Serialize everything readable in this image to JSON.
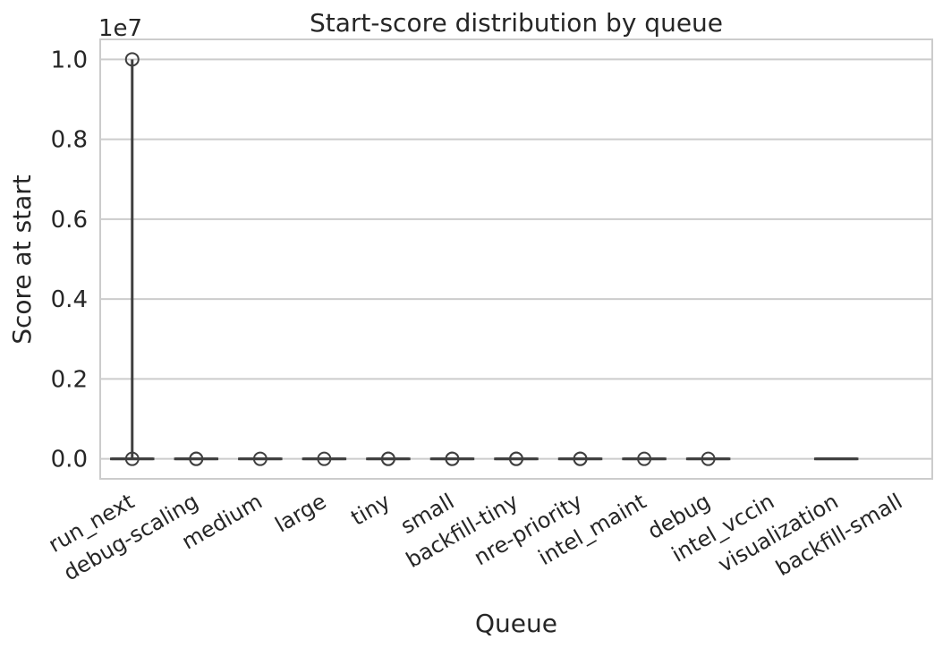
{
  "chart_data": {
    "type": "box",
    "title": "Start-score distribution by queue",
    "xlabel": "Queue",
    "ylabel": "Score at start",
    "y_offset_label": "1e7",
    "y_scale": 10000000,
    "ylim": [
      -0.05,
      1.05
    ],
    "yticks": [
      "0.0",
      "0.2",
      "0.4",
      "0.6",
      "0.8",
      "1.0"
    ],
    "grid": true,
    "categories": [
      "run_next",
      "debug-scaling",
      "medium",
      "large",
      "tiny",
      "small",
      "backfill-tiny",
      "nre-priority",
      "intel_maint",
      "debug",
      "intel_vccin",
      "visualization",
      "backfill-small"
    ],
    "boxes": [
      {
        "q1": 0.0,
        "median": 0.0,
        "q3": 0.0,
        "whisker_low": 0.0,
        "whisker_high": 1.0,
        "outliers": [
          0.0,
          1.0
        ]
      },
      {
        "q1": 0.0,
        "median": 0.0,
        "q3": 0.0,
        "whisker_low": 0.0,
        "whisker_high": 0.0,
        "outliers": [
          0.0,
          0.0
        ]
      },
      {
        "q1": 0.0,
        "median": 0.0,
        "q3": 0.0,
        "whisker_low": 0.0,
        "whisker_high": 0.0,
        "outliers": [
          0.0
        ]
      },
      {
        "q1": 0.0,
        "median": 0.0,
        "q3": 0.0,
        "whisker_low": 0.0,
        "whisker_high": 0.0,
        "outliers": [
          0.0
        ]
      },
      {
        "q1": 0.0,
        "median": 0.0,
        "q3": 0.0,
        "whisker_low": 0.0,
        "whisker_high": 0.0,
        "outliers": [
          0.0,
          0.0
        ]
      },
      {
        "q1": 0.0,
        "median": 0.0,
        "q3": 0.0,
        "whisker_low": 0.0,
        "whisker_high": 0.0,
        "outliers": [
          0.0,
          0.0
        ]
      },
      {
        "q1": 0.0,
        "median": 0.0,
        "q3": 0.0,
        "whisker_low": 0.0,
        "whisker_high": 0.0,
        "outliers": [
          0.0,
          0.0
        ]
      },
      {
        "q1": 0.0,
        "median": 0.0,
        "q3": 0.0,
        "whisker_low": 0.0,
        "whisker_high": 0.0,
        "outliers": [
          0.0,
          0.0
        ]
      },
      {
        "q1": 0.0,
        "median": 0.0,
        "q3": 0.0,
        "whisker_low": 0.0,
        "whisker_high": 0.0,
        "outliers": [
          0.0
        ]
      },
      {
        "q1": 0.0,
        "median": 0.0,
        "q3": 0.0,
        "whisker_low": 0.0,
        "whisker_high": 0.0,
        "outliers": [
          0.0
        ]
      },
      null,
      {
        "q1": 0.0,
        "median": 0.0,
        "q3": 0.0,
        "whisker_low": 0.0,
        "whisker_high": 0.0,
        "outliers": []
      },
      null
    ]
  },
  "colors": {
    "grid": "#cccccc",
    "frame": "#cccccc",
    "box_line": "#3f3f3f",
    "outlier": "#3f3f3f",
    "text": "#262626"
  }
}
